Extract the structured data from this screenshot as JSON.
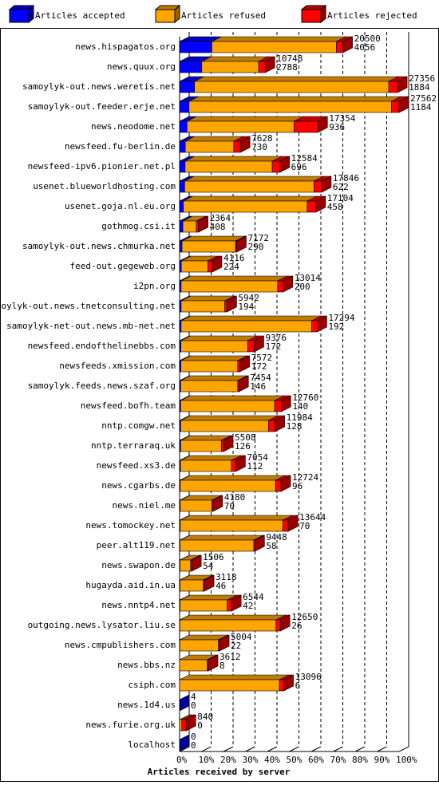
{
  "chart_data": {
    "type": "bar3d",
    "x_label": "Articles received by server",
    "categories": [
      "news.hispagatos.org",
      "news.quux.org",
      "samoylyk-out.news.weretis.net",
      "samoylyk-out.feeder.erje.net",
      "news.neodome.net",
      "newsfeed.fu-berlin.de",
      "newsfeed-ipv6.pionier.net.pl",
      "usenet.blueworldhosting.com",
      "usenet.goja.nl.eu.org",
      "gothmog.csi.it",
      "samoylyk-out.news.chmurka.net",
      "feed-out.gegeweb.org",
      "i2pn.org",
      "samoylyk-out.news.tnetconsulting.net",
      "samoylyk-net-out.news.mb-net.net",
      "newsfeed.endofthelinebbs.com",
      "newsfeeds.xmission.com",
      "samoylyk.feeds.news.szaf.org",
      "newsfeed.bofh.team",
      "nntp.comgw.net",
      "nntp.terraraq.uk",
      "newsfeed.xs3.de",
      "news.cgarbs.de",
      "news.niel.me",
      "news.tomockey.net",
      "peer.alt119.net",
      "news.swapon.de",
      "hugayda.aid.in.ua",
      "news.nntp4.net",
      "outgoing.news.lysator.liu.se",
      "news.cmpublishers.com",
      "news.bbs.nz",
      "csiph.com",
      "news.1d4.us",
      "news.furie.org.uk",
      "localhost"
    ],
    "totals": [
      20500,
      10748,
      27356,
      27562,
      17354,
      7628,
      12584,
      17846,
      17104,
      2364,
      7172,
      4116,
      13014,
      5942,
      17294,
      9376,
      7572,
      7454,
      12760,
      11984,
      5508,
      7054,
      12724,
      4180,
      13644,
      9448,
      1506,
      3118,
      6544,
      12650,
      5004,
      3612,
      13096,
      4,
      840,
      0
    ],
    "accepted": [
      4056,
      2788,
      1884,
      1184,
      936,
      730,
      696,
      622,
      458,
      408,
      290,
      224,
      200,
      194,
      192,
      172,
      172,
      146,
      140,
      128,
      126,
      112,
      96,
      70,
      70,
      58,
      54,
      46,
      42,
      26,
      22,
      8,
      6,
      0,
      0,
      0
    ],
    "series": [
      {
        "name": "Articles accepted",
        "color": "#0000ff",
        "values": [
          14.7,
          10.1,
          6.8,
          4.3,
          3.4,
          2.6,
          2.5,
          2.3,
          1.7,
          1.5,
          1.1,
          0.8,
          0.7,
          0.7,
          0.7,
          0.6,
          0.6,
          0.5,
          0.5,
          0.5,
          0.5,
          0.4,
          0.3,
          0.3,
          0.3,
          0.2,
          0.2,
          0.2,
          0.2,
          0.1,
          0.1,
          0,
          0,
          0,
          0,
          0
        ]
      },
      {
        "name": "Articles refused",
        "color": "#ffa500",
        "values": [
          56.7,
          25.9,
          88.5,
          92.2,
          48.7,
          22.1,
          39.7,
          58.9,
          56.4,
          6.1,
          24.4,
          12.1,
          44.0,
          19.9,
          59.5,
          30.4,
          25.9,
          26.0,
          42.8,
          40.0,
          18.5,
          23.2,
          43.4,
          14.4,
          46.7,
          33.6,
          4.8,
          10.6,
          21.5,
          43.8,
          17.6,
          12.6,
          45.5,
          0,
          1.0,
          0
        ]
      },
      {
        "name": "Articles rejected",
        "color": "#ff0000",
        "values": [
          3.0,
          3.0,
          4.0,
          3.5,
          10.9,
          3.0,
          3.5,
          3.5,
          4.0,
          1.0,
          0.5,
          2.0,
          2.5,
          1.0,
          2.5,
          3.0,
          1.0,
          0.5,
          3.0,
          3.0,
          1.0,
          2.0,
          2.5,
          0.5,
          2.5,
          0.5,
          0.5,
          0.5,
          2.0,
          2.0,
          0.5,
          0.5,
          2.0,
          0,
          2.0,
          0
        ]
      }
    ],
    "xlim": [
      0,
      100
    ],
    "xticks": [
      {
        "value": 0,
        "label": "0%"
      },
      {
        "value": 10,
        "label": "10%"
      },
      {
        "value": 20,
        "label": "20%"
      },
      {
        "value": 30,
        "label": "30%"
      },
      {
        "value": 40,
        "label": "40%"
      },
      {
        "value": 50,
        "label": "50%"
      },
      {
        "value": 60,
        "label": "60%"
      },
      {
        "value": 70,
        "label": "70%"
      },
      {
        "value": 80,
        "label": "80%"
      },
      {
        "value": 90,
        "label": "90%"
      },
      {
        "value": 100,
        "label": "100%"
      }
    ],
    "grid": true
  }
}
